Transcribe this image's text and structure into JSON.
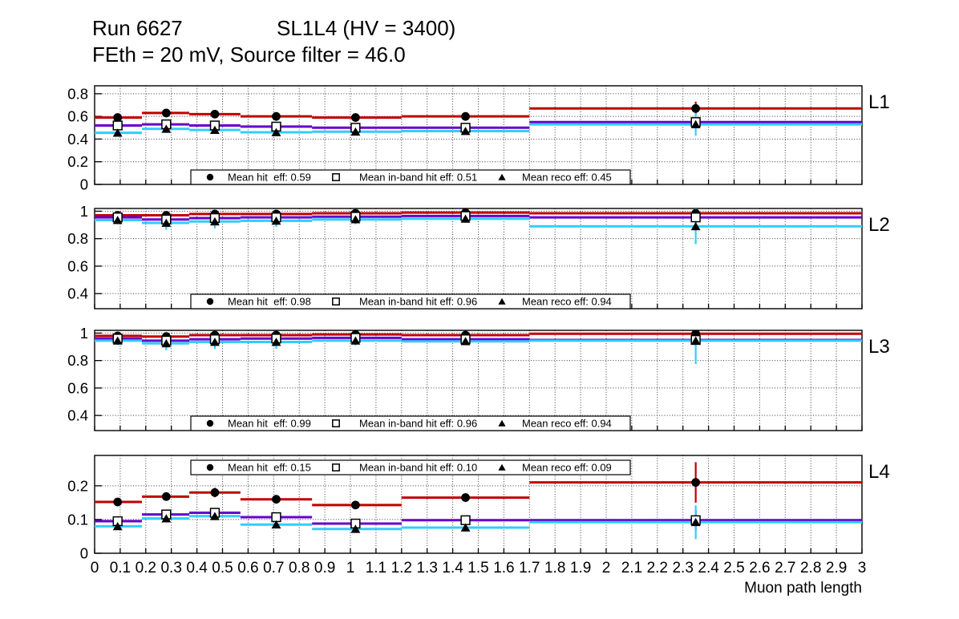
{
  "title": {
    "run": "Run 6627",
    "condition": "SL1L4 (HV = 3400)",
    "subtitle": "FEth = 20 mV, Source filter = 46.0"
  },
  "chart_data": {
    "type": "line",
    "style": "step-histogram-with-error-bars",
    "grid": true,
    "x": {
      "label": "Muon path length",
      "min": 0,
      "max": 3,
      "tick_step": 0.1,
      "tick_labels": [
        "0",
        "0.1",
        "0.2",
        "0.3",
        "0.4",
        "0.5",
        "0.6",
        "0.7",
        "0.8",
        "0.9",
        "1",
        "1.1",
        "1.2",
        "1.3",
        "1.4",
        "1.5",
        "1.6",
        "1.7",
        "1.8",
        "1.9",
        "2",
        "2.1",
        "2.2",
        "2.3",
        "2.4",
        "2.5",
        "2.6",
        "2.7",
        "2.8",
        "2.9",
        "3"
      ]
    },
    "bin_edges": [
      0,
      0.185,
      0.37,
      0.57,
      0.85,
      1.2,
      1.7,
      3.0
    ],
    "bin_centers": [
      0.09,
      0.28,
      0.47,
      0.71,
      1.02,
      1.45,
      2.35
    ],
    "series_meta": [
      {
        "key": "hit",
        "name": "Mean hit eff",
        "color": "#c00000",
        "marker": "filled-circle"
      },
      {
        "key": "inband",
        "name": "Mean in-band hit eff",
        "color": "#6600cc",
        "marker": "open-square"
      },
      {
        "key": "reco",
        "name": "Mean reco eff",
        "color": "#33ccff",
        "marker": "filled-triangle"
      }
    ],
    "marker_color": "#000000",
    "panels": [
      {
        "label": "L1",
        "ylim": [
          0,
          0.87
        ],
        "yticks": [
          0,
          0.2,
          0.4,
          0.6,
          0.8
        ],
        "ytick_labels": [
          "0",
          "0.2",
          "0.4",
          "0.6",
          "0.8"
        ],
        "legend_position": "bottom",
        "legend": [
          {
            "marker": "filled-circle",
            "label": "Mean hit  eff: 0.59"
          },
          {
            "marker": "open-square",
            "label": "Mean in-band hit eff: 0.51"
          },
          {
            "marker": "filled-triangle",
            "label": "Mean reco eff: 0.45"
          }
        ],
        "series": {
          "hit": {
            "values": [
              0.59,
              0.63,
              0.62,
              0.6,
              0.59,
              0.6,
              0.67
            ],
            "errors": [
              0.02,
              0.02,
              0.02,
              0.02,
              0.02,
              0.02,
              0.06
            ]
          },
          "inband": {
            "values": [
              0.52,
              0.53,
              0.52,
              0.51,
              0.5,
              0.5,
              0.55
            ],
            "errors": [
              0.02,
              0.02,
              0.02,
              0.02,
              0.02,
              0.02,
              0.035
            ]
          },
          "reco": {
            "values": [
              0.455,
              0.49,
              0.48,
              0.46,
              0.465,
              0.47,
              0.53
            ],
            "errors": [
              0.03,
              0.025,
              0.025,
              0.025,
              0.025,
              0.025,
              0.1
            ]
          }
        }
      },
      {
        "label": "L2",
        "ylim": [
          0.29,
          1.02
        ],
        "yticks": [
          0.4,
          0.6,
          0.8,
          1
        ],
        "ytick_labels": [
          "0.4",
          "0.6",
          "0.8",
          "1"
        ],
        "legend_position": "bottom",
        "legend": [
          {
            "marker": "filled-circle",
            "label": "Mean hit  eff: 0.98"
          },
          {
            "marker": "open-square",
            "label": "Mean in-band hit eff: 0.96"
          },
          {
            "marker": "filled-triangle",
            "label": "Mean reco eff: 0.94"
          }
        ],
        "series": {
          "hit": {
            "values": [
              0.97,
              0.97,
              0.98,
              0.98,
              0.985,
              0.99,
              0.985
            ],
            "errors": [
              0.012,
              0.012,
              0.012,
              0.012,
              0.012,
              0.012,
              0.012
            ]
          },
          "inband": {
            "values": [
              0.955,
              0.94,
              0.95,
              0.955,
              0.96,
              0.965,
              0.955
            ],
            "errors": [
              0.015,
              0.02,
              0.02,
              0.018,
              0.015,
              0.012,
              0.04
            ]
          },
          "reco": {
            "values": [
              0.935,
              0.915,
              0.925,
              0.93,
              0.94,
              0.945,
              0.89
            ],
            "errors": [
              0.03,
              0.05,
              0.05,
              0.045,
              0.035,
              0.02,
              0.13
            ]
          }
        }
      },
      {
        "label": "L3",
        "ylim": [
          0.29,
          1.02
        ],
        "yticks": [
          0.4,
          0.6,
          0.8,
          1
        ],
        "ytick_labels": [
          "0.4",
          "0.6",
          "0.8",
          "1"
        ],
        "legend_position": "bottom",
        "legend": [
          {
            "marker": "filled-circle",
            "label": "Mean hit  eff: 0.99"
          },
          {
            "marker": "open-square",
            "label": "Mean in-band hit eff: 0.96"
          },
          {
            "marker": "filled-triangle",
            "label": "Mean reco eff: 0.94"
          }
        ],
        "series": {
          "hit": {
            "values": [
              0.98,
              0.975,
              0.985,
              0.985,
              0.99,
              0.985,
              0.995
            ],
            "errors": [
              0.01,
              0.012,
              0.01,
              0.01,
              0.008,
              0.01,
              0.012
            ]
          },
          "inband": {
            "values": [
              0.96,
              0.945,
              0.955,
              0.96,
              0.965,
              0.955,
              0.95
            ],
            "errors": [
              0.015,
              0.018,
              0.015,
              0.015,
              0.012,
              0.015,
              0.03
            ]
          },
          "reco": {
            "values": [
              0.945,
              0.925,
              0.935,
              0.935,
              0.945,
              0.94,
              0.945
            ],
            "errors": [
              0.03,
              0.05,
              0.05,
              0.05,
              0.035,
              0.025,
              0.17
            ]
          }
        }
      },
      {
        "label": "L4",
        "ylim": [
          0,
          0.29
        ],
        "yticks": [
          0,
          0.1,
          0.2
        ],
        "ytick_labels": [
          "0",
          "0.1",
          "0.2"
        ],
        "legend_position": "top",
        "legend": [
          {
            "marker": "filled-circle",
            "label": "Mean hit  eff: 0.15"
          },
          {
            "marker": "open-square",
            "label": "Mean in-band hit eff: 0.10"
          },
          {
            "marker": "filled-triangle",
            "label": "Mean reco eff: 0.09"
          }
        ],
        "series": {
          "hit": {
            "values": [
              0.152,
              0.168,
              0.18,
              0.16,
              0.143,
              0.165,
              0.21
            ],
            "errors": [
              0.012,
              0.012,
              0.014,
              0.012,
              0.01,
              0.01,
              0.06
            ]
          },
          "inband": {
            "values": [
              0.095,
              0.115,
              0.12,
              0.107,
              0.088,
              0.098,
              0.098
            ],
            "errors": [
              0.008,
              0.008,
              0.01,
              0.008,
              0.008,
              0.008,
              0.03
            ]
          },
          "reco": {
            "values": [
              0.08,
              0.103,
              0.11,
              0.085,
              0.072,
              0.076,
              0.092
            ],
            "errors": [
              0.01,
              0.01,
              0.012,
              0.01,
              0.01,
              0.01,
              0.05
            ]
          }
        }
      }
    ]
  }
}
